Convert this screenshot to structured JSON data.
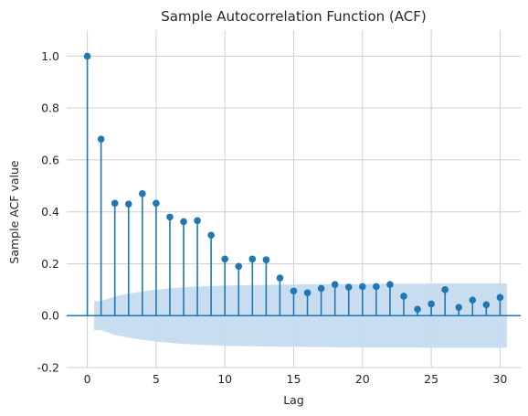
{
  "chart_data": {
    "type": "scatter",
    "title": "Sample Autocorrelation Function (ACF)",
    "xlabel": "Lag",
    "ylabel": "Sample ACF value",
    "xlim": [
      -1.5,
      31.5
    ],
    "ylim": [
      -0.2,
      1.1
    ],
    "xticks": [
      0,
      5,
      10,
      15,
      20,
      25,
      30
    ],
    "yticks": [
      -0.2,
      0.0,
      0.2,
      0.4,
      0.6,
      0.8,
      1.0
    ],
    "grid": true,
    "lags": [
      0,
      1,
      2,
      3,
      4,
      5,
      6,
      7,
      8,
      9,
      10,
      11,
      12,
      13,
      14,
      15,
      16,
      17,
      18,
      19,
      20,
      21,
      22,
      23,
      24,
      25,
      26,
      27,
      28,
      29,
      30
    ],
    "acf": [
      1.0,
      0.68,
      0.433,
      0.43,
      0.47,
      0.433,
      0.38,
      0.362,
      0.366,
      0.31,
      0.218,
      0.19,
      0.218,
      0.215,
      0.145,
      0.095,
      0.088,
      0.105,
      0.12,
      0.11,
      0.112,
      0.112,
      0.12,
      0.075,
      0.025,
      0.045,
      0.1,
      0.032,
      0.06,
      0.042,
      0.07
    ],
    "confidence_band": {
      "lags": [
        1,
        2,
        3,
        4,
        5,
        6,
        7,
        8,
        9,
        10,
        11,
        12,
        13,
        14,
        15,
        16,
        17,
        18,
        19,
        20,
        21,
        22,
        23,
        24,
        25,
        26,
        27,
        28,
        29,
        30
      ],
      "upper": [
        0.056,
        0.074,
        0.085,
        0.093,
        0.1,
        0.105,
        0.109,
        0.112,
        0.114,
        0.116,
        0.117,
        0.118,
        0.119,
        0.12,
        0.12,
        0.121,
        0.121,
        0.122,
        0.122,
        0.122,
        0.123,
        0.123,
        0.123,
        0.123,
        0.124,
        0.124,
        0.124,
        0.124,
        0.124,
        0.124
      ]
    },
    "colors": {
      "marker": "#1f77b4",
      "band": "#c6dbef",
      "zero_line": "#1f77b4"
    }
  }
}
